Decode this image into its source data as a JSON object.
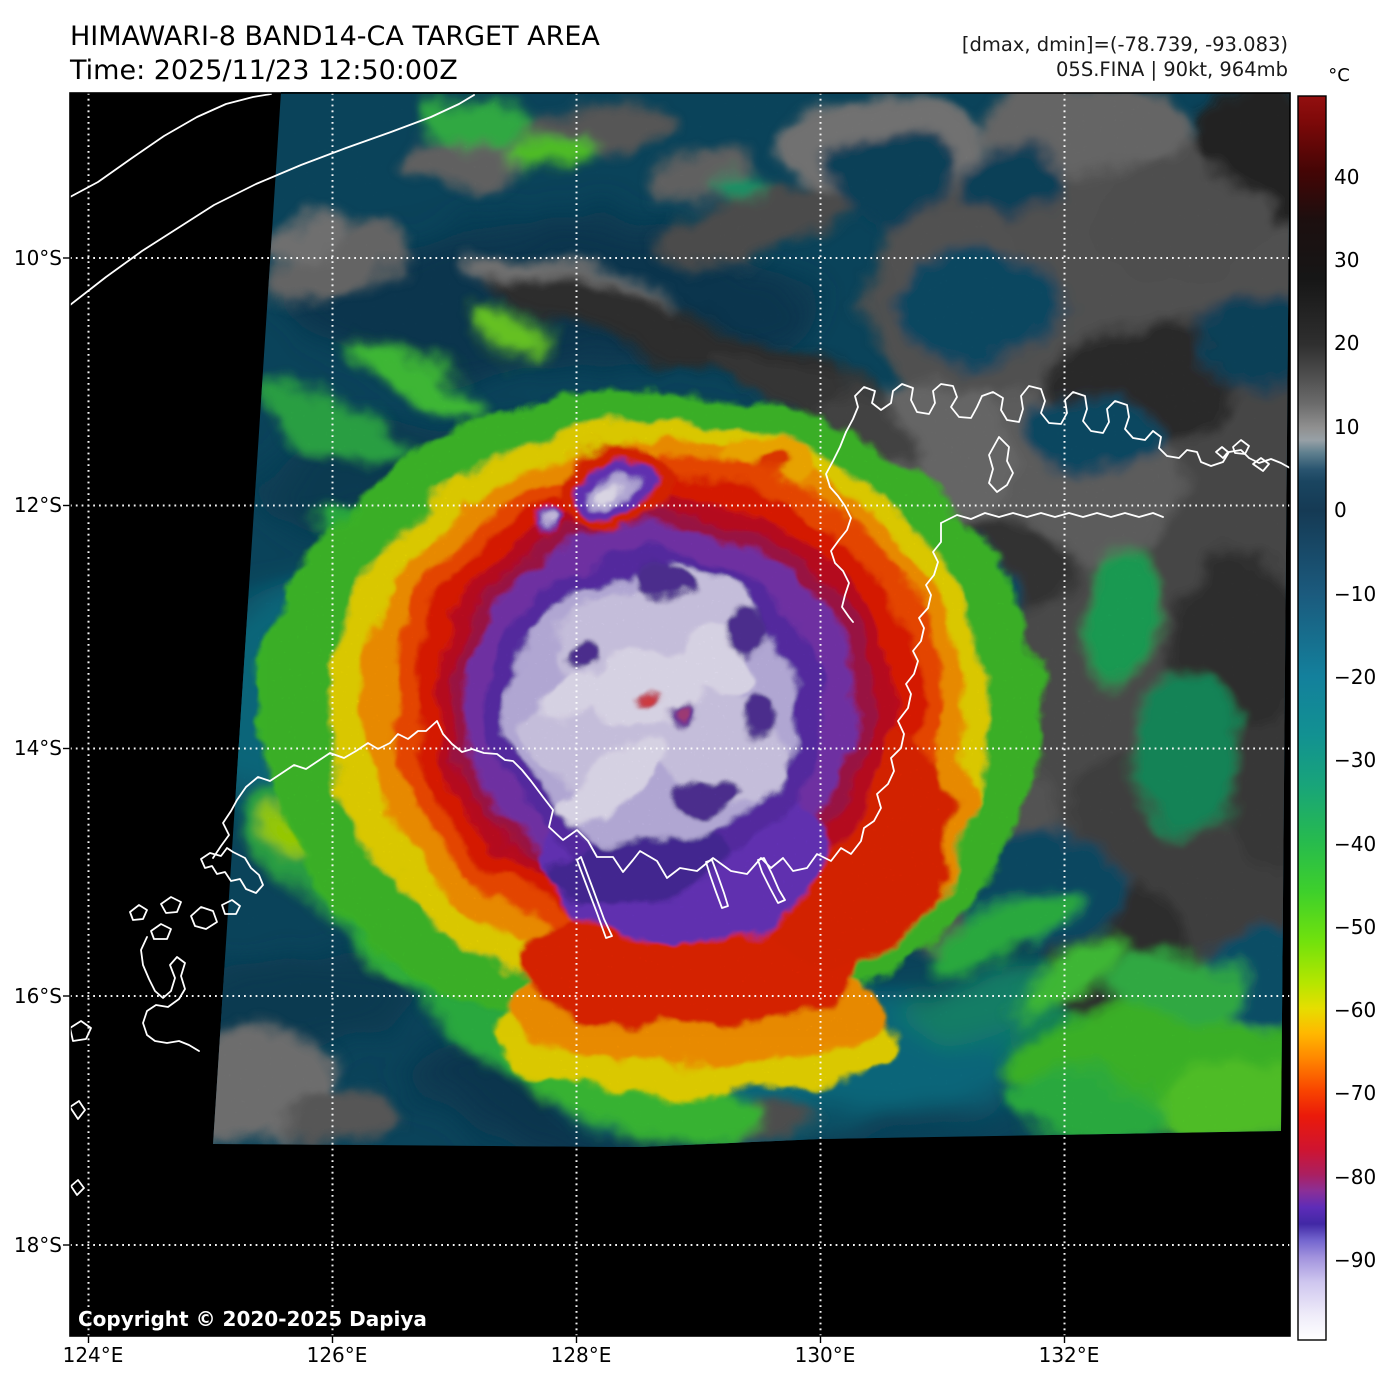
{
  "header": {
    "title": "HIMAWARI-8 BAND14-CA TARGET AREA",
    "time": "Time: 2025/11/23 12:50:00Z",
    "dmax_dmin": "[dmax, dmin]=(-78.739, -93.083)",
    "storm": "05S.FINA | 90kt, 964mb"
  },
  "map": {
    "copyright": "Copyright © 2020-2025 Dapiya",
    "lat_ticks": [
      "10°S",
      "12°S",
      "14°S",
      "16°S",
      "18°S"
    ],
    "lon_ticks": [
      "124°E",
      "126°E",
      "128°E",
      "130°E",
      "132°E"
    ]
  },
  "colorbar": {
    "unit": "°C",
    "ticks": [
      "40",
      "30",
      "20",
      "10",
      "0",
      "−10",
      "−20",
      "−30",
      "−40",
      "−50",
      "−60",
      "−70",
      "−80",
      "−90"
    ],
    "range_c": [
      50,
      -100
    ],
    "stops": [
      {
        "t": 50,
        "c": "#930f0f"
      },
      {
        "t": 47,
        "c": "#7e0909"
      },
      {
        "t": 41,
        "c": "#450505"
      },
      {
        "t": 35,
        "c": "#1c0f0f"
      },
      {
        "t": 28,
        "c": "#161616"
      },
      {
        "t": 20,
        "c": "#2f2f2f"
      },
      {
        "t": 13,
        "c": "#6a6a6a"
      },
      {
        "t": 10,
        "c": "#909090"
      },
      {
        "t": 8.5,
        "c": "#97a0a6"
      },
      {
        "t": 7,
        "c": "#60808f"
      },
      {
        "t": 5,
        "c": "#2a5570"
      },
      {
        "t": 3.5,
        "c": "#1a4560"
      },
      {
        "t": 0,
        "c": "#153a54"
      },
      {
        "t": -10,
        "c": "#1b5a7d"
      },
      {
        "t": -20,
        "c": "#13809c"
      },
      {
        "t": -27,
        "c": "#129192"
      },
      {
        "t": -33,
        "c": "#18a47a"
      },
      {
        "t": -40,
        "c": "#27bb4d"
      },
      {
        "t": -46,
        "c": "#3ed02b"
      },
      {
        "t": -52,
        "c": "#72e20c"
      },
      {
        "t": -57,
        "c": "#b6e600"
      },
      {
        "t": -60,
        "c": "#e6de00"
      },
      {
        "t": -63,
        "c": "#ffb800"
      },
      {
        "t": -66,
        "c": "#ff8800"
      },
      {
        "t": -70,
        "c": "#f84300"
      },
      {
        "t": -73,
        "c": "#ea1a0a"
      },
      {
        "t": -77,
        "c": "#cf1430"
      },
      {
        "t": -80,
        "c": "#ab1f60"
      },
      {
        "t": -82,
        "c": "#8b2f96"
      },
      {
        "t": -84,
        "c": "#5e2cb8"
      },
      {
        "t": -86,
        "c": "#4128a5"
      },
      {
        "t": -88,
        "c": "#7466cf"
      },
      {
        "t": -90,
        "c": "#a192dd"
      },
      {
        "t": -93,
        "c": "#cec6ef"
      },
      {
        "t": -97,
        "c": "#efecf9"
      },
      {
        "t": -100,
        "c": "#ffffff"
      }
    ]
  }
}
